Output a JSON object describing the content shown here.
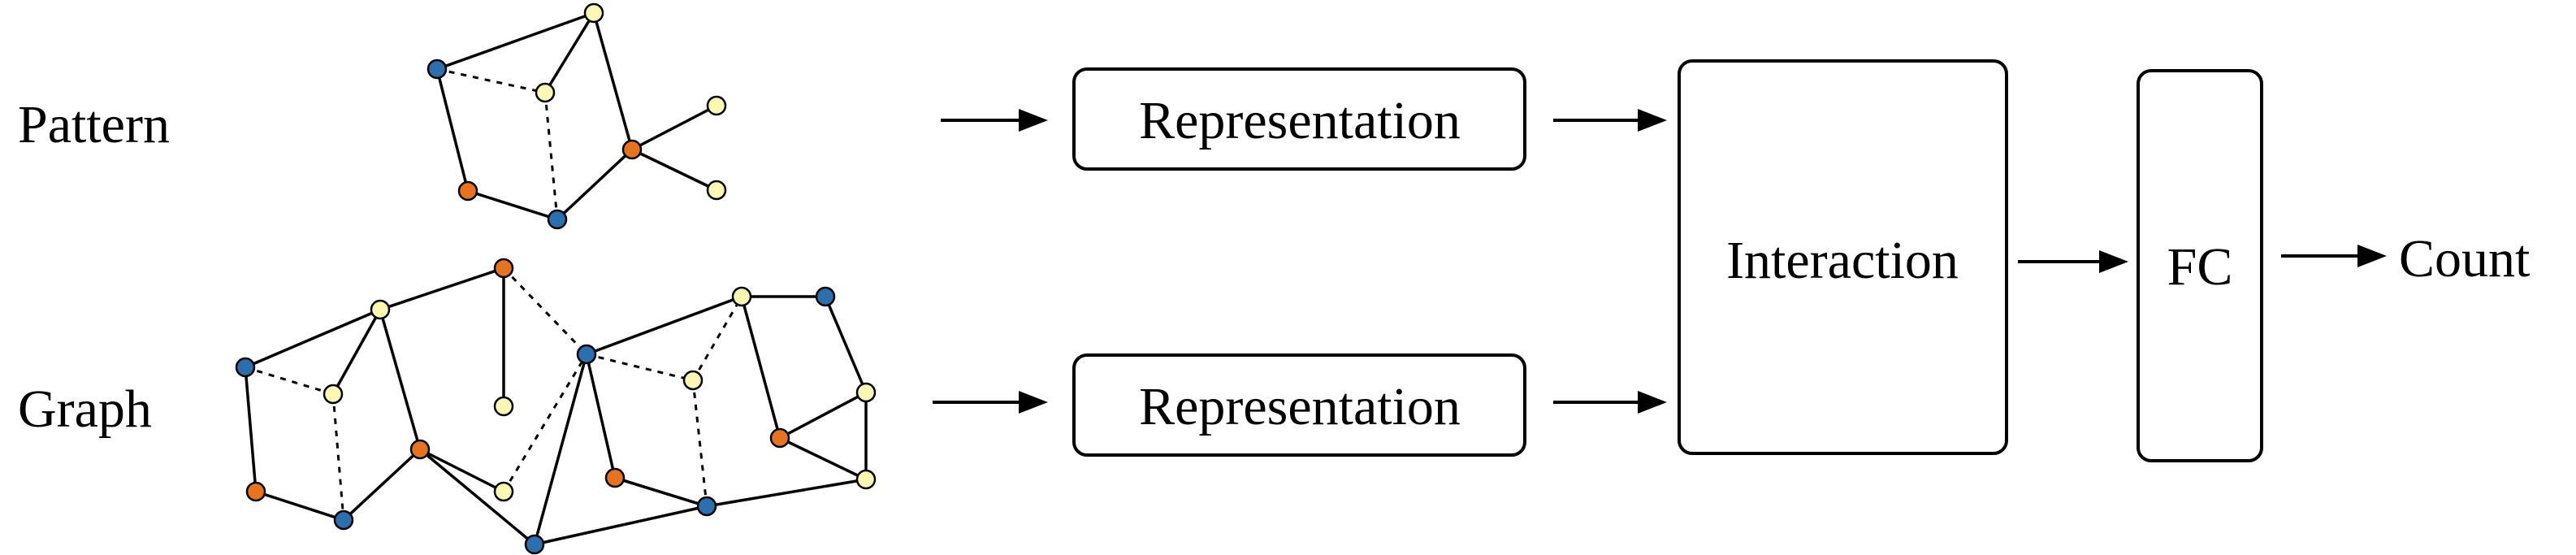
{
  "labels": {
    "pattern": "Pattern",
    "graph": "Graph",
    "representation_top": "Representation",
    "representation_bottom": "Representation",
    "interaction": "Interaction",
    "fc": "FC",
    "count": "Count"
  },
  "colors": {
    "blue": "#2c6fae",
    "orange": "#e8731e",
    "yellow": "#fbf8b4",
    "stroke": "#000000"
  },
  "pattern_graph": {
    "nodes": [
      {
        "id": "p1",
        "color": "blue"
      },
      {
        "id": "p2",
        "color": "yellow"
      },
      {
        "id": "p3",
        "color": "yellow"
      },
      {
        "id": "p4",
        "color": "orange"
      },
      {
        "id": "p5",
        "color": "blue"
      },
      {
        "id": "p6",
        "color": "orange"
      },
      {
        "id": "p7",
        "color": "yellow"
      },
      {
        "id": "p8",
        "color": "yellow"
      }
    ],
    "edges": [
      {
        "from": "p1",
        "to": "p2",
        "style": "solid"
      },
      {
        "from": "p1",
        "to": "p3",
        "style": "dashed"
      },
      {
        "from": "p1",
        "to": "p4",
        "style": "solid"
      },
      {
        "from": "p2",
        "to": "p3",
        "style": "solid"
      },
      {
        "from": "p2",
        "to": "p6",
        "style": "solid"
      },
      {
        "from": "p3",
        "to": "p5",
        "style": "dashed"
      },
      {
        "from": "p4",
        "to": "p5",
        "style": "solid"
      },
      {
        "from": "p5",
        "to": "p6",
        "style": "solid"
      },
      {
        "from": "p6",
        "to": "p7",
        "style": "solid"
      },
      {
        "from": "p6",
        "to": "p8",
        "style": "solid"
      }
    ]
  },
  "data_graph": {
    "nodes": [
      {
        "id": "g1",
        "color": "blue"
      },
      {
        "id": "g2",
        "color": "yellow"
      },
      {
        "id": "g3",
        "color": "yellow"
      },
      {
        "id": "g4",
        "color": "orange"
      },
      {
        "id": "g5",
        "color": "blue"
      },
      {
        "id": "g6",
        "color": "orange"
      },
      {
        "id": "g7",
        "color": "orange"
      },
      {
        "id": "g8",
        "color": "yellow"
      },
      {
        "id": "g9",
        "color": "yellow"
      },
      {
        "id": "g10",
        "color": "blue"
      },
      {
        "id": "g11",
        "color": "blue"
      },
      {
        "id": "g12",
        "color": "yellow"
      },
      {
        "id": "g13",
        "color": "orange"
      },
      {
        "id": "g14",
        "color": "yellow"
      },
      {
        "id": "g15",
        "color": "blue"
      },
      {
        "id": "g16",
        "color": "yellow"
      },
      {
        "id": "g17",
        "color": "blue"
      },
      {
        "id": "g18",
        "color": "orange"
      },
      {
        "id": "g19",
        "color": "yellow"
      },
      {
        "id": "g20",
        "color": "yellow"
      }
    ],
    "edges": [
      {
        "from": "g1",
        "to": "g2",
        "style": "solid"
      },
      {
        "from": "g1",
        "to": "g3",
        "style": "dashed"
      },
      {
        "from": "g1",
        "to": "g4",
        "style": "solid"
      },
      {
        "from": "g2",
        "to": "g3",
        "style": "solid"
      },
      {
        "from": "g2",
        "to": "g6",
        "style": "solid"
      },
      {
        "from": "g3",
        "to": "g5",
        "style": "dashed"
      },
      {
        "from": "g4",
        "to": "g5",
        "style": "solid"
      },
      {
        "from": "g5",
        "to": "g6",
        "style": "solid"
      },
      {
        "from": "g2",
        "to": "g7",
        "style": "solid"
      },
      {
        "from": "g7",
        "to": "g8",
        "style": "solid"
      },
      {
        "from": "g7",
        "to": "g11",
        "style": "dashed"
      },
      {
        "from": "g6",
        "to": "g9",
        "style": "solid"
      },
      {
        "from": "g6",
        "to": "g10",
        "style": "solid"
      },
      {
        "from": "g9",
        "to": "g11",
        "style": "dashed"
      },
      {
        "from": "g10",
        "to": "g11",
        "style": "solid"
      },
      {
        "from": "g11",
        "to": "g12",
        "style": "dashed"
      },
      {
        "from": "g11",
        "to": "g13",
        "style": "solid"
      },
      {
        "from": "g11",
        "to": "g14",
        "style": "solid"
      },
      {
        "from": "g13",
        "to": "g15",
        "style": "solid"
      },
      {
        "from": "g12",
        "to": "g15",
        "style": "dashed"
      },
      {
        "from": "g12",
        "to": "g14",
        "style": "dashed"
      },
      {
        "from": "g10",
        "to": "g15",
        "style": "solid"
      },
      {
        "from": "g14",
        "to": "g16",
        "style": "solid"
      },
      {
        "from": "g16",
        "to": "g17",
        "style": "solid"
      },
      {
        "from": "g14",
        "to": "g18",
        "style": "solid"
      },
      {
        "from": "g17",
        "to": "g19",
        "style": "solid"
      },
      {
        "from": "g18",
        "to": "g19",
        "style": "solid"
      },
      {
        "from": "g18",
        "to": "g20",
        "style": "solid"
      },
      {
        "from": "g19",
        "to": "g20",
        "style": "solid"
      },
      {
        "from": "g15",
        "to": "g20",
        "style": "solid"
      },
      {
        "from": "g13",
        "to": "g15",
        "style": "solid"
      }
    ]
  }
}
